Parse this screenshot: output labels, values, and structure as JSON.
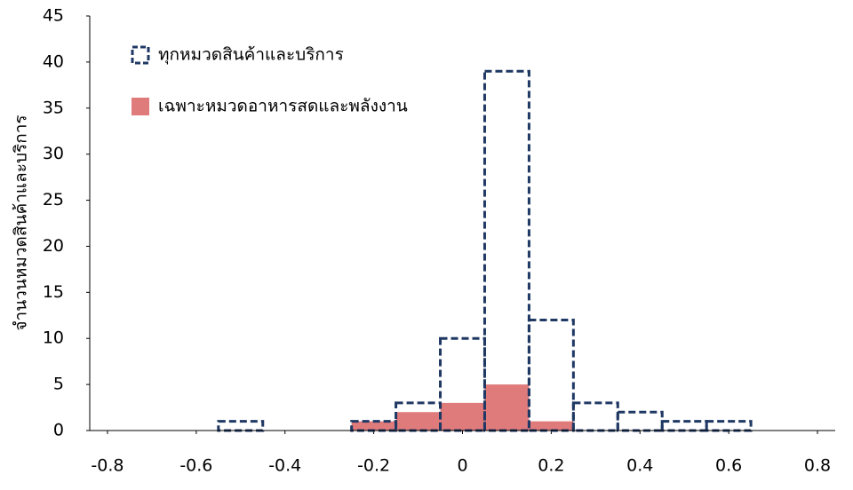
{
  "chart_data": {
    "type": "histogram",
    "ylabel": "จำนวนหมวดสินค้าและบริการ",
    "bins": [
      -0.55,
      -0.45,
      -0.35,
      -0.25,
      -0.15,
      -0.05,
      0.05,
      0.15,
      0.25,
      0.35,
      0.45,
      0.55,
      0.65
    ],
    "series": [
      {
        "name": "เฉพาะหมวดอาหารสดและพลังงาน",
        "color": "#e07b7b",
        "style": "filled",
        "values": [
          0,
          0,
          0,
          1,
          2,
          3,
          5,
          1,
          0,
          0,
          0,
          0
        ]
      },
      {
        "name": "ทุกหมวดสินค้าและบริการ",
        "color": "#1f3864",
        "style": "dashed",
        "values": [
          1,
          0,
          0,
          1,
          3,
          10,
          39,
          12,
          3,
          2,
          1,
          1
        ]
      }
    ],
    "legend_order": [
      1,
      0
    ],
    "legend": "upper left",
    "xlim": [
      -0.84,
      0.84
    ],
    "xticks": [
      -0.8,
      -0.6,
      -0.4,
      -0.2,
      0,
      0.2,
      0.4,
      0.6,
      0.8
    ],
    "ylim": [
      0,
      45
    ],
    "yticks": [
      0,
      5,
      10,
      15,
      20,
      25,
      30,
      35,
      40,
      45
    ]
  }
}
